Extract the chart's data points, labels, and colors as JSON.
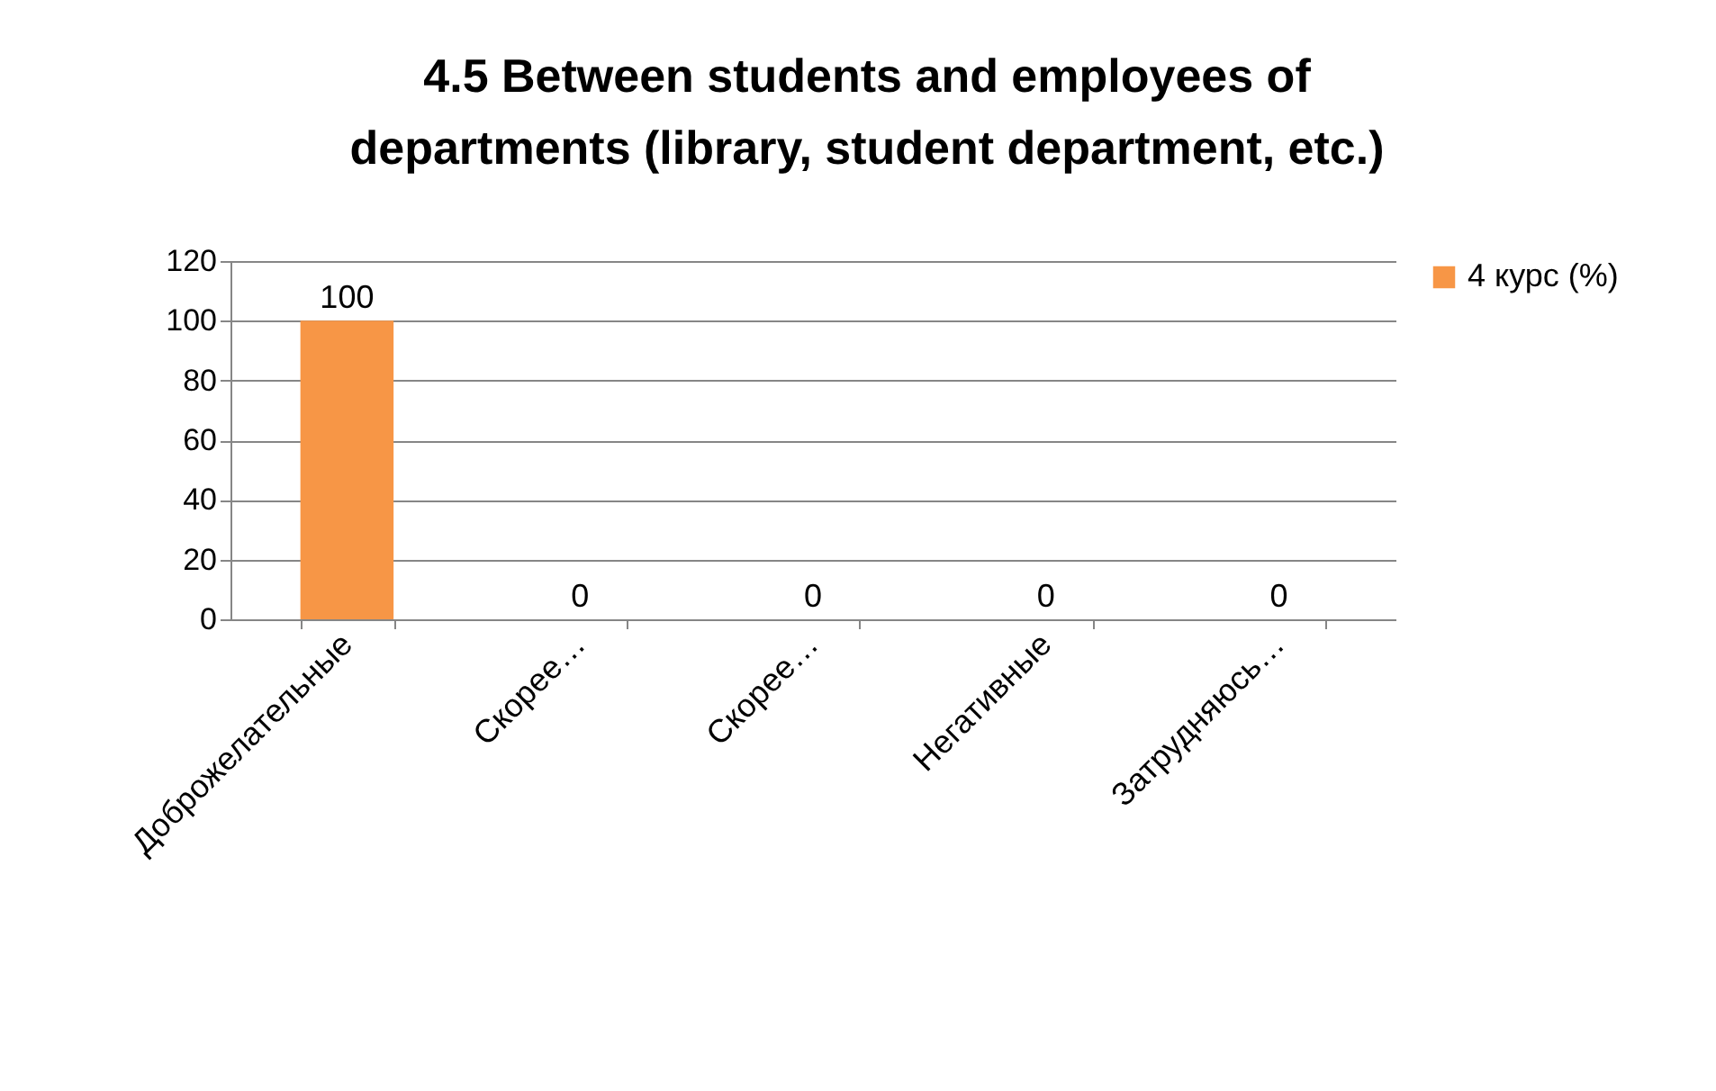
{
  "chart_data": {
    "type": "bar",
    "title": "4.5 Between students and employees of departments (library, student department, etc.)",
    "categories": [
      "Доброжелательные",
      "Скорее…",
      "Скорее…",
      "Негативные",
      "Затрудняюсь…"
    ],
    "series": [
      {
        "name": "4 курс (%)",
        "color": "#f79646",
        "values": [
          100,
          0,
          0,
          0,
          0
        ]
      }
    ],
    "ylim": [
      0,
      120
    ],
    "yticks": [
      0,
      20,
      40,
      60,
      80,
      100,
      120
    ],
    "grid": "y",
    "legend": "right",
    "data_labels": true
  }
}
